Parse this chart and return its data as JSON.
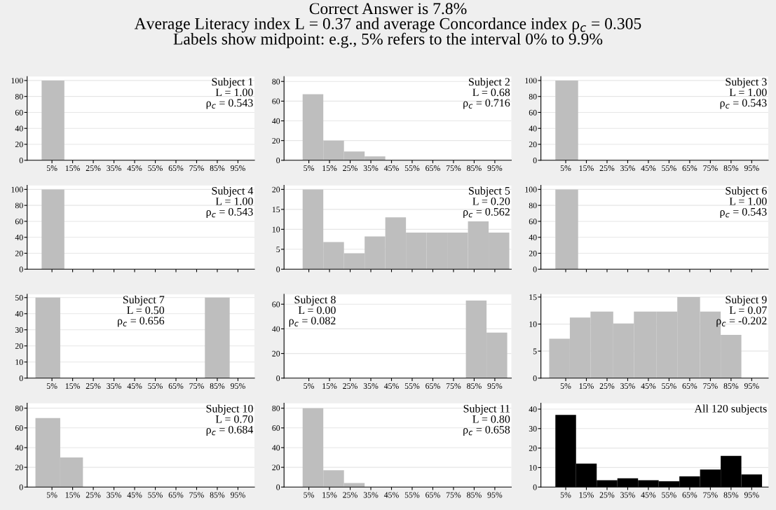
{
  "chart_data": [
    {
      "type": "histogram",
      "bins": [
        0,
        11
      ],
      "values": [
        100
      ],
      "color": "#bebebe",
      "xlim": [
        -7,
        103
      ],
      "ylim": [
        0,
        105
      ],
      "yticks": [
        0,
        20,
        40,
        60,
        80,
        100
      ],
      "xticks": [
        {
          "value": 5,
          "label": "5%"
        },
        {
          "value": 15,
          "label": "15%"
        },
        {
          "value": 25,
          "label": "25%"
        },
        {
          "value": 35,
          "label": "35%"
        },
        {
          "value": 45,
          "label": "45%"
        },
        {
          "value": 55,
          "label": "55%"
        },
        {
          "value": 65,
          "label": "65%"
        },
        {
          "value": 75,
          "label": "75%"
        },
        {
          "value": 85,
          "label": "85%"
        },
        {
          "value": 95,
          "label": "95%"
        }
      ],
      "grid": "y",
      "annotations": [
        "Subject 1\nL = 1.00\nρ$_{c}$ = 0.543"
      ]
    },
    {
      "type": "histogram",
      "title": "Correct Answer is 7.8%",
      "subtitle": "Average Literacy index L = 0.37 and average Concordance index ρ$_{c}$ = 0.305\nLabels show midpoint: e.g., 5% refers to the interval 0% to 9.9%",
      "bins": [
        2,
        12,
        22,
        32,
        42
      ],
      "values": [
        67,
        20,
        9,
        4
      ],
      "color": "#bebebe",
      "xlim": [
        -7,
        103
      ],
      "ylim": [
        0,
        85
      ],
      "yticks": [
        0,
        20,
        40,
        60,
        80
      ],
      "xticks": [
        {
          "value": 5,
          "label": "5%"
        },
        {
          "value": 15,
          "label": "15%"
        },
        {
          "value": 25,
          "label": "25%"
        },
        {
          "value": 35,
          "label": "35%"
        },
        {
          "value": 45,
          "label": "45%"
        },
        {
          "value": 55,
          "label": "55%"
        },
        {
          "value": 65,
          "label": "65%"
        },
        {
          "value": 75,
          "label": "75%"
        },
        {
          "value": 85,
          "label": "85%"
        },
        {
          "value": 95,
          "label": "95%"
        }
      ],
      "grid": "y",
      "annotations": [
        "Subject 2\nL = 0.68\nρ$_{c}$ = 0.716"
      ]
    },
    {
      "type": "histogram",
      "bins": [
        0,
        11
      ],
      "values": [
        100
      ],
      "color": "#bebebe",
      "xlim": [
        -7,
        103
      ],
      "ylim": [
        0,
        105
      ],
      "yticks": [
        0,
        20,
        40,
        60,
        80,
        100
      ],
      "xticks": [
        {
          "value": 5,
          "label": "5%"
        },
        {
          "value": 15,
          "label": "15%"
        },
        {
          "value": 25,
          "label": "25%"
        },
        {
          "value": 35,
          "label": "35%"
        },
        {
          "value": 45,
          "label": "45%"
        },
        {
          "value": 55,
          "label": "55%"
        },
        {
          "value": 65,
          "label": "65%"
        },
        {
          "value": 75,
          "label": "75%"
        },
        {
          "value": 85,
          "label": "85%"
        },
        {
          "value": 95,
          "label": "95%"
        }
      ],
      "grid": "y",
      "annotations": [
        "Subject 3\nL = 1.00\nρ$_{c}$ = 0.543"
      ]
    },
    {
      "type": "histogram",
      "bins": [
        0,
        11
      ],
      "values": [
        100
      ],
      "color": "#bebebe",
      "xlim": [
        -7,
        103
      ],
      "ylim": [
        0,
        105
      ],
      "yticks": [
        0,
        20,
        40,
        60,
        80,
        100
      ],
      "xticks": [
        5,
        15,
        25,
        35,
        45,
        55,
        65,
        75,
        85,
        95
      ],
      "tick_labels": "y",
      "grid": "y",
      "annotations": [
        "Subject 4\nL = 1.00\nρ$_{c}$ = 0.543"
      ]
    },
    {
      "type": "histogram",
      "bins": [
        2,
        12,
        22,
        32,
        42,
        52,
        62,
        72,
        82,
        92,
        102
      ],
      "values": [
        20,
        6.8,
        4,
        8.2,
        13,
        9.2,
        9.2,
        9.2,
        12,
        9.2
      ],
      "color": "#bebebe",
      "xlim": [
        -7,
        103
      ],
      "ylim": [
        0,
        21
      ],
      "yticks": [
        0,
        5,
        10,
        15,
        20
      ],
      "xticks": [
        5,
        15,
        25,
        35,
        45,
        55,
        65,
        75,
        85,
        95
      ],
      "tick_labels": "y",
      "grid": "y",
      "annotations": [
        "Subject 5\nL = 0.20\nρ$_{c}$ = 0.562"
      ]
    },
    {
      "type": "histogram",
      "bins": [
        0,
        11
      ],
      "values": [
        100
      ],
      "color": "#bebebe",
      "xlim": [
        -7,
        103
      ],
      "ylim": [
        0,
        105
      ],
      "yticks": [
        0,
        20,
        40,
        60,
        80,
        100
      ],
      "xticks": [
        5,
        15,
        25,
        35,
        45,
        55,
        65,
        75,
        85,
        95
      ],
      "tick_labels": "y",
      "grid": "y",
      "annotations": [
        "Subject 6\nL = 1.00\nρ$_{c}$ = 0.543"
      ]
    },
    {
      "type": "histogram",
      "bins": [
        -3,
        9,
        79,
        91
      ],
      "values": [
        50,
        0,
        50
      ],
      "color": "#bebebe",
      "xlim": [
        -7,
        103
      ],
      "ylim": [
        0,
        52
      ],
      "yticks": [
        0,
        10,
        20,
        30,
        40,
        50
      ],
      "xticks": [
        {
          "value": 5,
          "label": "5%"
        },
        {
          "value": 15,
          "label": "15%"
        },
        {
          "value": 25,
          "label": "25%"
        },
        {
          "value": 35,
          "label": "35%"
        },
        {
          "value": 45,
          "label": "45%"
        },
        {
          "value": 55,
          "label": "55%"
        },
        {
          "value": 65,
          "label": "65%"
        },
        {
          "value": 75,
          "label": "75%"
        },
        {
          "value": 85,
          "label": "85%"
        },
        {
          "value": 95,
          "label": "95%"
        }
      ],
      "grid": "y",
      "annotations": [
        "Subject 7\nL = 0.50\nρ$_{c}$ = 0.656"
      ]
    },
    {
      "type": "histogram",
      "bins": [
        81,
        91,
        101
      ],
      "values": [
        63,
        37
      ],
      "color": "#bebebe",
      "xlim": [
        -7,
        103
      ],
      "ylim": [
        0,
        68
      ],
      "yticks": [
        0,
        20,
        40,
        60
      ],
      "xticks": [
        {
          "value": 5,
          "label": "5%"
        },
        {
          "value": 15,
          "label": "15%"
        },
        {
          "value": 25,
          "label": "25%"
        },
        {
          "value": 35,
          "label": "35%"
        },
        {
          "value": 45,
          "label": "45%"
        },
        {
          "value": 55,
          "label": "55%"
        },
        {
          "value": 65,
          "label": "65%"
        },
        {
          "value": 75,
          "label": "75%"
        },
        {
          "value": 85,
          "label": "85%"
        },
        {
          "value": 95,
          "label": "95%"
        }
      ],
      "grid": "y",
      "annotations": [
        "Subject 8\nL = 0.00\nρ$_{c}$ = 0.082"
      ]
    },
    {
      "type": "histogram",
      "bins": [
        -3,
        7,
        17,
        28,
        38,
        49,
        59,
        70,
        80,
        90
      ],
      "values": [
        7.3,
        11.2,
        12.3,
        10.1,
        12.3,
        12.3,
        15,
        12.3,
        8
      ],
      "color": "#bebebe",
      "xlim": [
        -7,
        103
      ],
      "ylim": [
        0,
        15.5
      ],
      "yticks": [
        0,
        5,
        10,
        15
      ],
      "xticks": [
        {
          "value": 5,
          "label": "5%"
        },
        {
          "value": 15,
          "label": "15%"
        },
        {
          "value": 25,
          "label": "25%"
        },
        {
          "value": 35,
          "label": "35%"
        },
        {
          "value": 45,
          "label": "45%"
        },
        {
          "value": 55,
          "label": "55%"
        },
        {
          "value": 65,
          "label": "65%"
        },
        {
          "value": 75,
          "label": "75%"
        },
        {
          "value": 85,
          "label": "85%"
        },
        {
          "value": 95,
          "label": "95%"
        }
      ],
      "grid": "y",
      "annotations": [
        "Subject 9\nL = 0.07\nρ$_{c}$ = -0.202"
      ]
    },
    {
      "type": "histogram",
      "bins": [
        -3,
        9,
        20
      ],
      "values": [
        70,
        30
      ],
      "color": "#bebebe",
      "xlim": [
        -7,
        103
      ],
      "ylim": [
        0,
        85
      ],
      "yticks": [
        0,
        20,
        40,
        60,
        80
      ],
      "xticks": [
        {
          "value": 5,
          "label": "5%"
        },
        {
          "value": 15,
          "label": "15%"
        },
        {
          "value": 25,
          "label": "25%"
        },
        {
          "value": 35,
          "label": "35%"
        },
        {
          "value": 45,
          "label": "45%"
        },
        {
          "value": 55,
          "label": "55%"
        },
        {
          "value": 65,
          "label": "65%"
        },
        {
          "value": 75,
          "label": "75%"
        },
        {
          "value": 85,
          "label": "85%"
        },
        {
          "value": 95,
          "label": "95%"
        }
      ],
      "grid": "y",
      "annotations": [
        "Subject 10\nL = 0.70\nρ$_{c}$ = 0.684"
      ]
    },
    {
      "type": "histogram",
      "bins": [
        2,
        12,
        22,
        32
      ],
      "values": [
        80,
        17,
        4
      ],
      "color": "#bebebe",
      "xlim": [
        -7,
        103
      ],
      "ylim": [
        0,
        85
      ],
      "yticks": [
        0,
        20,
        40,
        60,
        80
      ],
      "xticks": [
        {
          "value": 5,
          "label": "5%"
        },
        {
          "value": 15,
          "label": "15%"
        },
        {
          "value": 25,
          "label": "25%"
        },
        {
          "value": 35,
          "label": "35%"
        },
        {
          "value": 45,
          "label": "45%"
        },
        {
          "value": 55,
          "label": "55%"
        },
        {
          "value": 65,
          "label": "65%"
        },
        {
          "value": 75,
          "label": "75%"
        },
        {
          "value": 85,
          "label": "85%"
        },
        {
          "value": 95,
          "label": "95%"
        }
      ],
      "grid": "y",
      "annotations": [
        "Subject 11\nL = 0.80\nρ$_{c}$ = 0.658"
      ]
    },
    {
      "type": "histogram",
      "bins": [
        0,
        10,
        20,
        30,
        40,
        50,
        60,
        70,
        80,
        90,
        100
      ],
      "values": [
        37,
        12,
        3.5,
        4.5,
        3.5,
        3,
        5.5,
        9,
        16,
        6.5
      ],
      "color": "#000000",
      "xlim": [
        -7,
        103
      ],
      "ylim": [
        0,
        43
      ],
      "yticks": [
        0,
        10,
        20,
        30,
        40
      ],
      "xticks": [
        {
          "value": 5,
          "label": "5%"
        },
        {
          "value": 15,
          "label": "15%"
        },
        {
          "value": 25,
          "label": "25%"
        },
        {
          "value": 35,
          "label": "35%"
        },
        {
          "value": 45,
          "label": "45%"
        },
        {
          "value": 55,
          "label": "55%"
        },
        {
          "value": 65,
          "label": "65%"
        },
        {
          "value": 75,
          "label": "75%"
        },
        {
          "value": 85,
          "label": "85%"
        },
        {
          "value": 95,
          "label": "95%"
        }
      ],
      "grid": "y",
      "annotations": [
        "All 120 subjects"
      ]
    }
  ]
}
